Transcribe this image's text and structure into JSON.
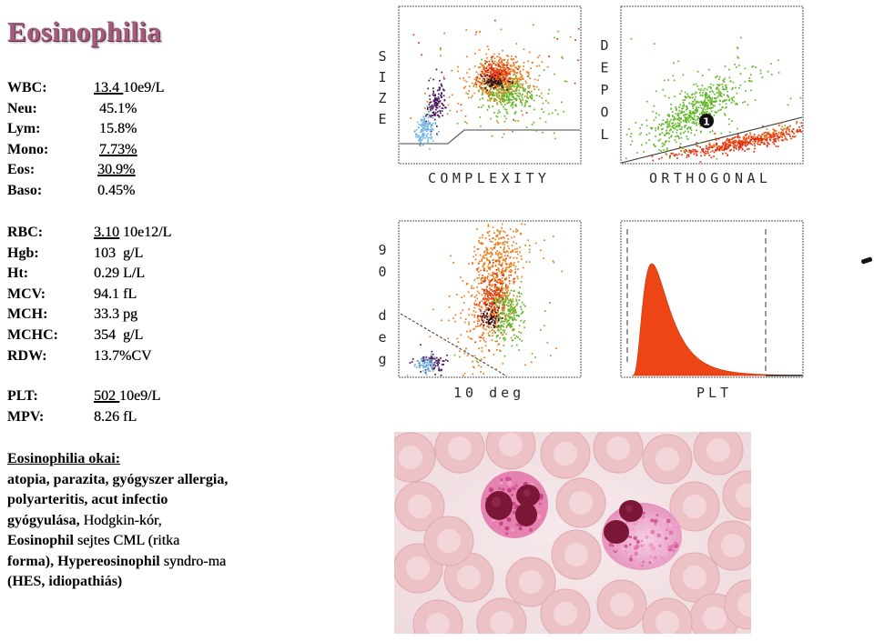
{
  "title": "Eosinophilia",
  "labs": [
    {
      "label": "WBC:",
      "value": "13.4 ",
      "unit": "10e9/L"
    },
    {
      "label": "Neu:",
      "value": "45.1%"
    },
    {
      "label": "Lym:",
      "value": "15.8%"
    },
    {
      "label": "Mono:",
      "value": "7.73%"
    },
    {
      "label": "Eos:",
      "value": "30.9%"
    },
    {
      "label": "Baso:",
      "value": "0.45%"
    },
    {
      "label": "RBC:",
      "value": "3.10",
      "unit": " 10e12/L"
    },
    {
      "label": "Hgb:",
      "value": "103  g/L"
    },
    {
      "label": "Ht:",
      "value": "0.29 L/L"
    },
    {
      "label": "MCV:",
      "value": "94.1 fL"
    },
    {
      "label": "MCH:",
      "value": "33.3 pg"
    },
    {
      "label": "MCHC:",
      "value": "354  g/L"
    },
    {
      "label": "RDW:",
      "value": "13.7%CV"
    },
    {
      "label": "PLT:",
      "value": "502 ",
      "unit": "10e9/L"
    },
    {
      "label": "MPV:",
      "value": "8.26 fL"
    }
  ],
  "causes": {
    "heading": "Eosinophilia okai:",
    "lines": [
      {
        "bold": "atopia, parazita, gyógyszer allergia,"
      },
      {
        "bold": "polyarteritis, acut infectio"
      },
      {
        "bold": "gyógyulása,",
        "normal": " Hodgkin-kór,"
      },
      {
        "bold": "Eosinophil",
        "normal": " sejtes CML (ritka"
      },
      {
        "bold": "forma), Hypereosinophil",
        "normal": " syndro-ma"
      },
      {
        "bold": "(HES, idiopathiás)"
      }
    ]
  },
  "plots": {
    "size_complexity": {
      "y_label": "SIZE",
      "x_label": "COMPLEXITY"
    },
    "depol_orthogonal": {
      "y_label": "DEPOL",
      "x_label": "ORTHOGONAL",
      "gate_marker": "1"
    },
    "deg90_deg10": {
      "y_label": "90 deg",
      "x_label": "10 deg"
    },
    "plt_histogram": {
      "x_label": "PLT"
    }
  },
  "colors": {
    "title": "#a35c7e",
    "scatter_palette": [
      "#f07a18",
      "#e0300f",
      "#62b82a",
      "#2b0f12",
      "#4a165a",
      "#6fb5e5"
    ],
    "histogram": "#ee4516",
    "rbc": "#ecc2c6",
    "eosinophil_cytoplasm": "#e482b0",
    "eosinophil_nucleus": "#7a1636"
  }
}
